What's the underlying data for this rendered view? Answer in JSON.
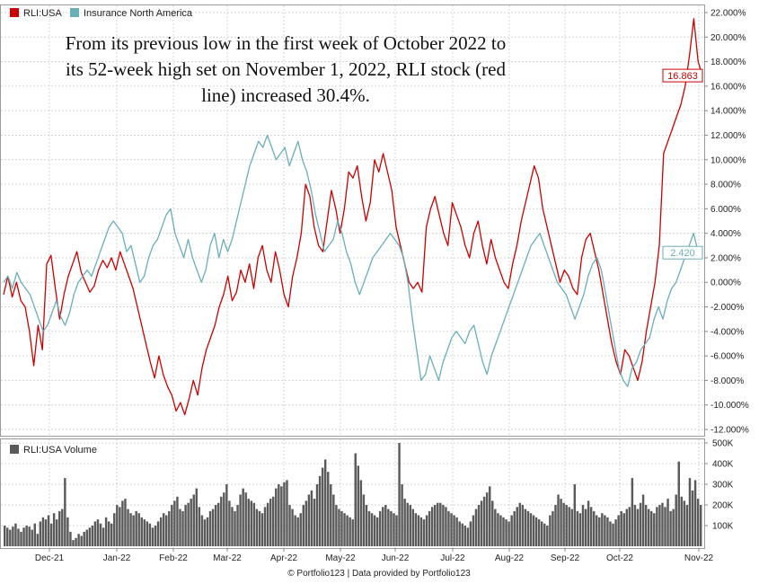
{
  "chart_data": [
    {
      "type": "line",
      "x_labels": [
        "Dec-21",
        "Jan-22",
        "Feb-22",
        "Mar-22",
        "Apr-22",
        "May-22",
        "Jun-22",
        "Jul-22",
        "Aug-22",
        "Sep-22",
        "Oct-22",
        "Nov-22"
      ],
      "y_ticks": [
        "22.000%",
        "20.000%",
        "18.000%",
        "16.000%",
        "14.000%",
        "12.000%",
        "10.000%",
        "8.000%",
        "6.000%",
        "4.000%",
        "2.000%",
        "0.000%",
        "-2.000%",
        "-4.000%",
        "-6.000%",
        "-8.000%",
        "-10.000%",
        "-12.000%"
      ],
      "ylim": [
        -12,
        22
      ],
      "grid": true,
      "legend_position": "top-left",
      "annotation": [
        "From its previous low in the first week of October 2022 to",
        "its 52-week high set on November 1, 2022, RLI stock (red",
        "line) increased 30.4%."
      ],
      "series": [
        {
          "name": "RLI:USA",
          "color": "#cc0000",
          "end_label": "16.863",
          "values": [
            -1.0,
            0.5,
            -1.2,
            0.0,
            -1.5,
            -2.0,
            -4.0,
            -6.8,
            -3.5,
            -5.5,
            1.5,
            2.2,
            -0.5,
            -3.0,
            -1.0,
            0.5,
            1.5,
            2.5,
            0.8,
            0.0,
            -0.8,
            -0.3,
            1.0,
            1.8,
            1.2,
            2.0,
            1.0,
            2.5,
            1.5,
            0.5,
            -0.5,
            -2.0,
            -3.5,
            -5.0,
            -6.5,
            -7.8,
            -6.0,
            -7.5,
            -8.5,
            -9.2,
            -10.5,
            -9.8,
            -10.8,
            -9.5,
            -8.0,
            -9.2,
            -7.0,
            -5.5,
            -4.5,
            -3.5,
            -2.0,
            -1.0,
            0.5,
            -1.5,
            -0.8,
            1.0,
            0.0,
            1.5,
            -0.5,
            2.0,
            3.0,
            1.0,
            0.0,
            2.5,
            1.0,
            -1.0,
            -2.0,
            0.5,
            2.0,
            4.0,
            8.0,
            7.0,
            4.5,
            3.0,
            2.5,
            5.0,
            7.5,
            6.0,
            4.0,
            6.0,
            9.0,
            8.5,
            9.5,
            7.0,
            5.0,
            6.5,
            10.0,
            9.0,
            10.5,
            9.0,
            7.5,
            4.5,
            3.0,
            1.5,
            0.0,
            -0.5,
            0.0,
            -0.8,
            4.5,
            6.0,
            7.0,
            5.5,
            4.0,
            3.0,
            6.5,
            5.5,
            4.5,
            3.0,
            2.0,
            4.0,
            5.0,
            3.0,
            1.5,
            3.5,
            2.0,
            1.0,
            0.0,
            -0.5,
            1.5,
            3.0,
            5.0,
            6.5,
            8.0,
            9.5,
            8.5,
            6.0,
            4.5,
            3.0,
            1.5,
            0.0,
            1.0,
            0.5,
            -0.5,
            -1.0,
            2.0,
            3.5,
            4.0,
            2.5,
            1.0,
            -1.0,
            -3.0,
            -5.0,
            -6.5,
            -7.5,
            -5.5,
            -6.0,
            -7.0,
            -8.0,
            -6.5,
            -4.0,
            -2.0,
            0.0,
            3.0,
            10.5,
            11.5,
            12.5,
            13.5,
            14.5,
            16.0,
            18.5,
            21.5,
            18.0,
            16.863
          ]
        },
        {
          "name": "Insurance North America",
          "color": "#6aaeb8",
          "end_label": "2.420",
          "values": [
            0.0,
            0.5,
            -0.5,
            0.8,
            0.0,
            -0.5,
            -1.0,
            -2.0,
            -3.0,
            -4.0,
            -3.5,
            -2.5,
            -1.5,
            -2.8,
            -3.5,
            -2.5,
            -1.0,
            0.0,
            0.5,
            1.0,
            0.5,
            1.5,
            2.5,
            3.5,
            4.5,
            5.0,
            4.5,
            4.0,
            2.5,
            3.0,
            1.5,
            0.0,
            0.5,
            2.0,
            3.0,
            3.5,
            4.5,
            5.5,
            6.0,
            4.0,
            3.0,
            2.0,
            3.5,
            2.0,
            1.0,
            0.0,
            1.0,
            3.0,
            4.0,
            2.0,
            3.5,
            2.5,
            3.5,
            5.0,
            6.5,
            8.0,
            9.5,
            10.5,
            11.5,
            11.0,
            12.0,
            11.0,
            10.0,
            10.5,
            11.0,
            9.5,
            10.5,
            11.5,
            10.0,
            9.0,
            7.5,
            5.5,
            4.0,
            2.5,
            3.0,
            3.5,
            5.0,
            4.0,
            2.5,
            1.5,
            0.0,
            -1.0,
            0.0,
            1.0,
            2.0,
            2.5,
            3.0,
            3.5,
            4.0,
            3.5,
            3.0,
            2.0,
            0.0,
            -3.0,
            -5.5,
            -8.0,
            -7.5,
            -6.0,
            -7.0,
            -8.0,
            -6.5,
            -5.5,
            -4.5,
            -4.0,
            -4.5,
            -5.0,
            -4.0,
            -3.5,
            -5.0,
            -6.5,
            -7.5,
            -6.0,
            -5.0,
            -4.0,
            -3.0,
            -2.0,
            -1.0,
            0.0,
            1.0,
            2.0,
            3.0,
            3.5,
            4.0,
            3.0,
            2.0,
            1.0,
            0.0,
            -0.5,
            -1.0,
            -2.0,
            -3.0,
            -2.0,
            -1.0,
            0.5,
            1.5,
            2.0,
            1.0,
            -1.0,
            -3.0,
            -5.0,
            -7.0,
            -8.0,
            -8.5,
            -7.0,
            -6.5,
            -5.5,
            -5.0,
            -4.5,
            -3.0,
            -2.0,
            -3.0,
            -1.5,
            -0.5,
            0.0,
            1.0,
            2.0,
            3.0,
            4.0,
            2.5,
            2.42
          ]
        }
      ]
    },
    {
      "type": "bar",
      "legend": "RLI:USA Volume",
      "color": "#5a5a5a",
      "y_ticks": [
        "500K",
        "400K",
        "300K",
        "200K",
        "100K"
      ],
      "ylim": [
        0,
        500000
      ],
      "values": [
        100000,
        90000,
        80000,
        95000,
        110000,
        85000,
        70000,
        90000,
        100000,
        95000,
        80000,
        110000,
        60000,
        120000,
        140000,
        130000,
        150000,
        110000,
        160000,
        130000,
        170000,
        180000,
        330000,
        140000,
        70000,
        30000,
        40000,
        60000,
        50000,
        70000,
        80000,
        90000,
        100000,
        120000,
        130000,
        110000,
        90000,
        140000,
        120000,
        110000,
        160000,
        200000,
        190000,
        220000,
        230000,
        180000,
        160000,
        150000,
        170000,
        160000,
        140000,
        130000,
        120000,
        110000,
        90000,
        100000,
        120000,
        140000,
        160000,
        150000,
        170000,
        200000,
        220000,
        240000,
        180000,
        170000,
        200000,
        210000,
        230000,
        250000,
        280000,
        190000,
        150000,
        130000,
        140000,
        170000,
        180000,
        200000,
        210000,
        240000,
        260000,
        300000,
        220000,
        190000,
        170000,
        200000,
        250000,
        280000,
        260000,
        230000,
        220000,
        210000,
        180000,
        170000,
        160000,
        190000,
        210000,
        230000,
        240000,
        280000,
        300000,
        290000,
        310000,
        320000,
        200000,
        180000,
        150000,
        140000,
        160000,
        200000,
        220000,
        250000,
        270000,
        230000,
        300000,
        340000,
        380000,
        420000,
        360000,
        300000,
        250000,
        200000,
        180000,
        170000,
        160000,
        150000,
        140000,
        130000,
        450000,
        390000,
        320000,
        250000,
        200000,
        170000,
        160000,
        150000,
        140000,
        170000,
        190000,
        200000,
        180000,
        170000,
        160000,
        150000,
        500000,
        300000,
        230000,
        210000,
        200000,
        180000,
        160000,
        150000,
        140000,
        130000,
        150000,
        170000,
        190000,
        200000,
        210000,
        210000,
        200000,
        190000,
        170000,
        160000,
        150000,
        140000,
        120000,
        110000,
        100000,
        90000,
        120000,
        150000,
        180000,
        200000,
        220000,
        240000,
        260000,
        290000,
        220000,
        180000,
        160000,
        150000,
        140000,
        130000,
        120000,
        150000,
        170000,
        190000,
        210000,
        200000,
        180000,
        170000,
        160000,
        150000,
        140000,
        130000,
        120000,
        110000,
        100000,
        150000,
        170000,
        200000,
        250000,
        230000,
        210000,
        200000,
        190000,
        180000,
        300000,
        170000,
        160000,
        200000,
        180000,
        220000,
        190000,
        170000,
        150000,
        140000,
        160000,
        150000,
        140000,
        120000,
        110000,
        130000,
        150000,
        170000,
        160000,
        180000,
        190000,
        330000,
        200000,
        180000,
        210000,
        250000,
        200000,
        180000,
        170000,
        160000,
        190000,
        200000,
        210000,
        190000,
        230000,
        170000,
        180000,
        250000,
        410000,
        240000,
        220000,
        200000,
        330000,
        270000,
        320000,
        230000,
        200000
      ]
    }
  ],
  "footer": "© Portfolio123 | Data provided by Portfolio123"
}
